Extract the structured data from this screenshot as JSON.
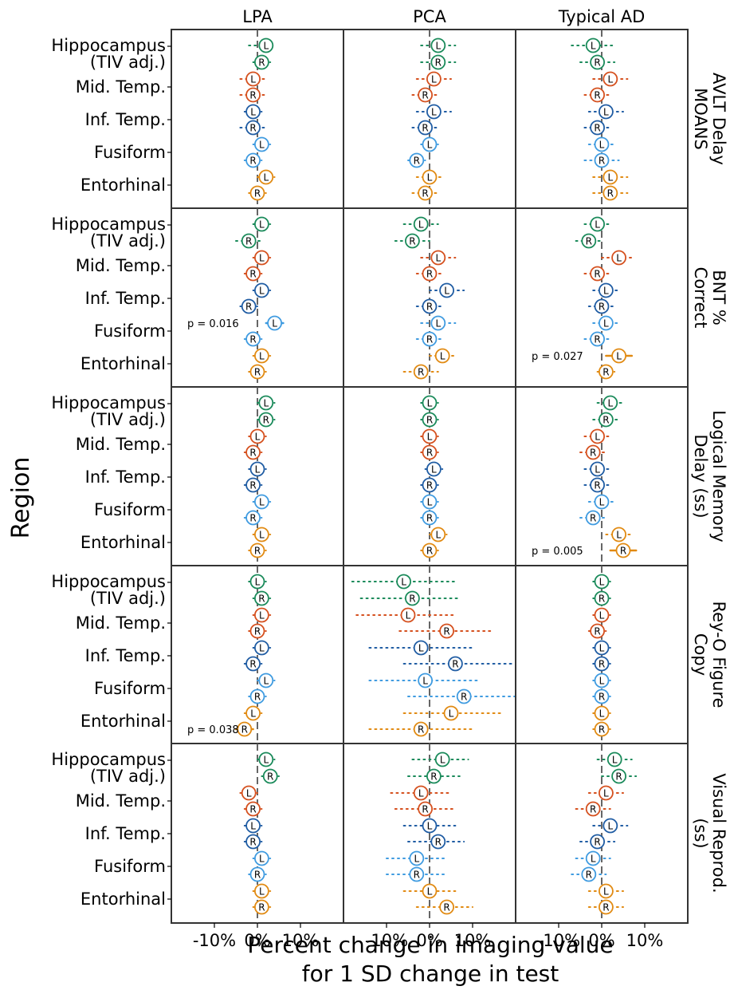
{
  "chart_data": {
    "type": "scatter",
    "subtype": "forest-plot-facet-grid",
    "y_axis_title": "Region",
    "x_axis_title_line1": "Percent change in imaging value",
    "x_axis_title_line2": "for 1 SD change in test",
    "x_ticks": [
      -10,
      0,
      10
    ],
    "x_tick_labels": [
      "-10%",
      "0%",
      "10%"
    ],
    "xlim": [
      -20,
      20
    ],
    "reference_line_x": 0,
    "columns": [
      "LPA",
      "PCA",
      "Typical AD"
    ],
    "rows": [
      {
        "line1": "AVLT Delay",
        "line2": "MOANS"
      },
      {
        "line1": "BNT %",
        "line2": "Correct"
      },
      {
        "line1": "Logical Memory",
        "line2": "Delay (ss)"
      },
      {
        "line1": "Rey-O Figure",
        "line2": "Copy"
      },
      {
        "line1": "Visual Reprod.",
        "line2": "(ss)"
      }
    ],
    "regions": [
      {
        "line1": "Hippocampus",
        "line2": "(TIV adj.)",
        "color": "#1a8a5a"
      },
      {
        "line1": "Mid. Temp.",
        "line2": "",
        "color": "#d5501e"
      },
      {
        "line1": "Inf. Temp.",
        "line2": "",
        "color": "#1f5ca3"
      },
      {
        "line1": "Fusiform",
        "line2": "",
        "color": "#3f9be0"
      },
      {
        "line1": "Entorhinal",
        "line2": "",
        "color": "#e18a12"
      }
    ],
    "point_labels": [
      "L",
      "R"
    ],
    "estimates": [
      [
        [
          [
            2,
            -2,
            4,
            null
          ],
          [
            1,
            -1,
            3,
            null
          ],
          [
            -1,
            -4,
            2,
            null
          ],
          [
            -1,
            -4,
            2,
            null
          ],
          [
            -1,
            -3,
            1,
            null
          ],
          [
            -1,
            -4,
            2,
            null
          ],
          [
            1,
            -1,
            3,
            null
          ],
          [
            -1,
            -3,
            1,
            null
          ],
          [
            2,
            0,
            4,
            null
          ],
          [
            0,
            -2,
            2,
            null
          ]
        ],
        [
          [
            2,
            -2,
            6,
            null
          ],
          [
            2,
            -2,
            6,
            null
          ],
          [
            1,
            -3,
            5,
            null
          ],
          [
            -1,
            -4,
            2,
            null
          ],
          [
            1,
            -3,
            5,
            null
          ],
          [
            -1,
            -4,
            2,
            null
          ],
          [
            0,
            -2,
            2,
            null
          ],
          [
            -3,
            -5,
            -1,
            null
          ],
          [
            0,
            -3,
            3,
            null
          ],
          [
            -1,
            -4,
            2,
            null
          ]
        ],
        [
          [
            -2,
            -7,
            3,
            null
          ],
          [
            -1,
            -5,
            3,
            null
          ],
          [
            2,
            -2,
            6,
            null
          ],
          [
            -1,
            -4,
            2,
            null
          ],
          [
            1,
            -3,
            5,
            null
          ],
          [
            -1,
            -4,
            2,
            null
          ],
          [
            0,
            -3,
            3,
            null
          ],
          [
            0,
            -4,
            4,
            null
          ],
          [
            2,
            -2,
            6,
            null
          ],
          [
            2,
            -2,
            6,
            null
          ]
        ]
      ],
      [
        [
          [
            1,
            -1,
            3,
            null
          ],
          [
            -2,
            -5,
            1,
            null
          ],
          [
            1,
            -1,
            3,
            null
          ],
          [
            -1,
            -3,
            1,
            null
          ],
          [
            1,
            -1,
            3,
            null
          ],
          [
            -2,
            -4,
            0,
            null
          ],
          [
            4,
            2,
            6,
            "p = 0.016"
          ],
          [
            -1,
            -3,
            1,
            null
          ],
          [
            1,
            -1,
            3,
            null
          ],
          [
            0,
            -2,
            2,
            null
          ]
        ],
        [
          [
            -2,
            -6,
            2,
            null
          ],
          [
            -4,
            -8,
            0,
            null
          ],
          [
            2,
            -2,
            6,
            null
          ],
          [
            0,
            -3,
            3,
            null
          ],
          [
            4,
            0,
            8,
            null
          ],
          [
            0,
            -3,
            3,
            null
          ],
          [
            2,
            -2,
            6,
            null
          ],
          [
            0,
            -3,
            3,
            null
          ],
          [
            3,
            0,
            6,
            null
          ],
          [
            -2,
            -6,
            2,
            null
          ]
        ],
        [
          [
            -1,
            -4,
            2,
            null
          ],
          [
            -3,
            -6,
            0,
            null
          ],
          [
            4,
            0,
            7,
            null
          ],
          [
            -1,
            -4,
            2,
            null
          ],
          [
            1,
            -2,
            4,
            null
          ],
          [
            0,
            -3,
            3,
            null
          ],
          [
            1,
            -2,
            4,
            null
          ],
          [
            -1,
            -4,
            2,
            null
          ],
          [
            4,
            1,
            7,
            "p = 0.027"
          ],
          [
            1,
            -1,
            3,
            null
          ]
        ]
      ],
      [
        [
          [
            2,
            0,
            4,
            null
          ],
          [
            2,
            0,
            4,
            null
          ],
          [
            0,
            -2,
            2,
            null
          ],
          [
            -1,
            -3,
            1,
            null
          ],
          [
            0,
            -2,
            2,
            null
          ],
          [
            -1,
            -3,
            1,
            null
          ],
          [
            1,
            -1,
            3,
            null
          ],
          [
            -1,
            -3,
            1,
            null
          ],
          [
            1,
            -1,
            3,
            null
          ],
          [
            0,
            -2,
            2,
            null
          ]
        ],
        [
          [
            0,
            -2,
            2,
            null
          ],
          [
            0,
            -2,
            2,
            null
          ],
          [
            0,
            -2,
            2,
            null
          ],
          [
            0,
            -2,
            2,
            null
          ],
          [
            1,
            -1,
            3,
            null
          ],
          [
            0,
            -2,
            2,
            null
          ],
          [
            0,
            -2,
            2,
            null
          ],
          [
            0,
            -2,
            2,
            null
          ],
          [
            2,
            0,
            4,
            null
          ],
          [
            0,
            -2,
            2,
            null
          ]
        ],
        [
          [
            2,
            -1,
            5,
            null
          ],
          [
            1,
            -2,
            4,
            null
          ],
          [
            -1,
            -4,
            2,
            null
          ],
          [
            -2,
            -5,
            1,
            null
          ],
          [
            -1,
            -4,
            2,
            null
          ],
          [
            -1,
            -4,
            2,
            null
          ],
          [
            0,
            -3,
            3,
            null
          ],
          [
            -2,
            -5,
            1,
            null
          ],
          [
            4,
            1,
            7,
            null
          ],
          [
            5,
            2,
            8,
            "p = 0.005"
          ]
        ]
      ],
      [
        [
          [
            0,
            -2,
            2,
            null
          ],
          [
            1,
            -1,
            3,
            null
          ],
          [
            1,
            -1,
            3,
            null
          ],
          [
            0,
            -2,
            2,
            null
          ],
          [
            1,
            -1,
            3,
            null
          ],
          [
            -1,
            -3,
            1,
            null
          ],
          [
            2,
            0,
            4,
            null
          ],
          [
            0,
            -2,
            2,
            null
          ],
          [
            -1,
            -3,
            1,
            null
          ],
          [
            -3,
            -5,
            -1,
            "p = 0.038"
          ]
        ],
        [
          [
            -6,
            -18,
            6,
            null
          ],
          [
            -4,
            -16,
            7,
            null
          ],
          [
            -5,
            -17,
            6,
            null
          ],
          [
            4,
            -7,
            15,
            null
          ],
          [
            -2,
            -14,
            10,
            null
          ],
          [
            6,
            -6,
            19,
            null
          ],
          [
            -1,
            -14,
            11,
            null
          ],
          [
            8,
            -5,
            20,
            null
          ],
          [
            5,
            -6,
            17,
            null
          ],
          [
            -2,
            -14,
            10,
            null
          ]
        ],
        [
          [
            0,
            -2,
            2,
            null
          ],
          [
            0,
            -2,
            2,
            null
          ],
          [
            0,
            -2,
            2,
            null
          ],
          [
            -1,
            -3,
            1,
            null
          ],
          [
            0,
            -2,
            2,
            null
          ],
          [
            0,
            -2,
            2,
            null
          ],
          [
            0,
            -2,
            2,
            null
          ],
          [
            0,
            -2,
            2,
            null
          ],
          [
            0,
            -2,
            2,
            null
          ],
          [
            0,
            -2,
            2,
            null
          ]
        ]
      ],
      [
        [
          [
            2,
            0,
            4,
            null
          ],
          [
            3,
            1,
            5,
            null
          ],
          [
            -2,
            -4,
            0,
            null
          ],
          [
            -1,
            -3,
            1,
            null
          ],
          [
            -1,
            -3,
            1,
            null
          ],
          [
            -1,
            -3,
            1,
            null
          ],
          [
            1,
            -1,
            3,
            null
          ],
          [
            0,
            -2,
            2,
            null
          ],
          [
            1,
            -1,
            3,
            null
          ],
          [
            1,
            -1,
            3,
            null
          ]
        ],
        [
          [
            3,
            -4,
            9,
            null
          ],
          [
            1,
            -5,
            7,
            null
          ],
          [
            -2,
            -9,
            5,
            null
          ],
          [
            -1,
            -8,
            6,
            null
          ],
          [
            0,
            -6,
            6,
            null
          ],
          [
            2,
            -5,
            8,
            null
          ],
          [
            -3,
            -10,
            4,
            null
          ],
          [
            -3,
            -10,
            4,
            null
          ],
          [
            0,
            -6,
            6,
            null
          ],
          [
            4,
            -3,
            10,
            null
          ]
        ],
        [
          [
            3,
            -1,
            7,
            null
          ],
          [
            4,
            0,
            8,
            null
          ],
          [
            1,
            -3,
            5,
            null
          ],
          [
            -2,
            -6,
            2,
            null
          ],
          [
            2,
            -2,
            6,
            null
          ],
          [
            -1,
            -5,
            3,
            null
          ],
          [
            -2,
            -6,
            2,
            null
          ],
          [
            -3,
            -7,
            1,
            null
          ],
          [
            1,
            -3,
            5,
            null
          ],
          [
            1,
            -3,
            5,
            null
          ]
        ]
      ]
    ]
  }
}
